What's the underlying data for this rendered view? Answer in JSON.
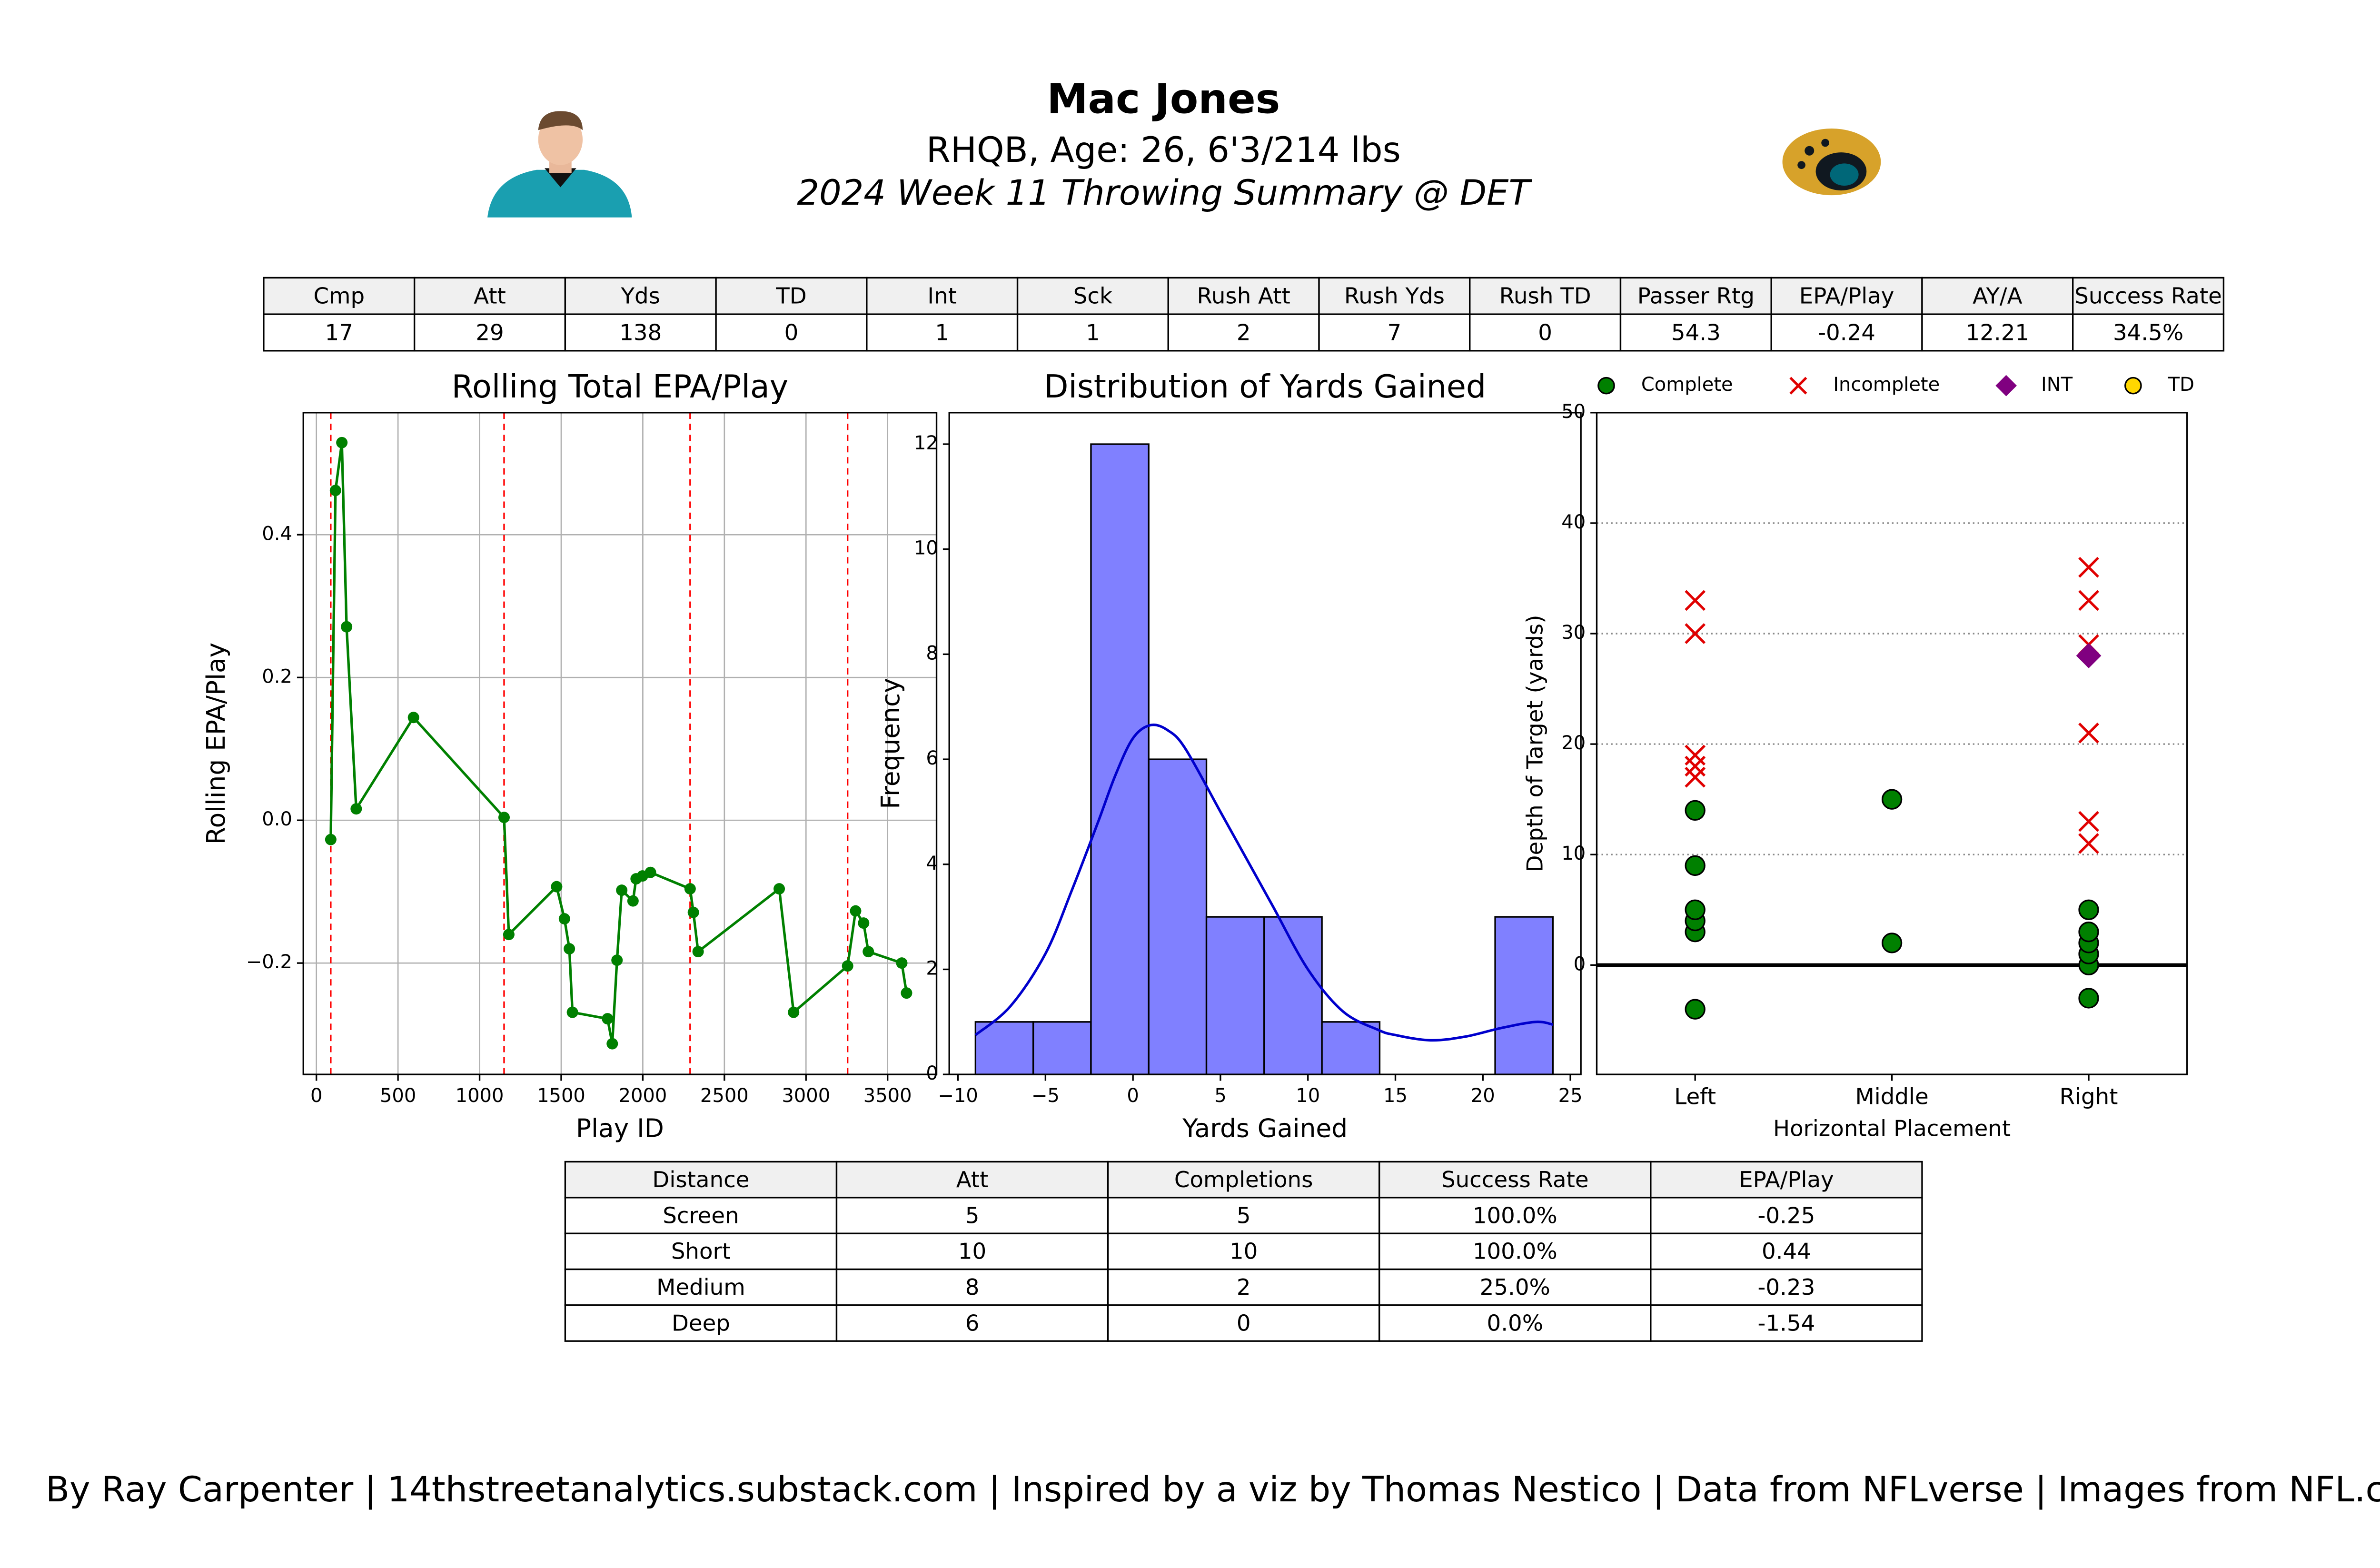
{
  "header": {
    "title": "Mac Jones",
    "subtitle": "RHQB, Age: 26, 6'3/214 lbs",
    "summary": "2024 Week 11 Throwing Summary @ DET"
  },
  "stats_table": {
    "columns": [
      "Cmp",
      "Att",
      "Yds",
      "TD",
      "Int",
      "Sck",
      "Rush Att",
      "Rush Yds",
      "Rush TD",
      "Passer Rtg",
      "EPA/Play",
      "AY/A",
      "Success Rate"
    ],
    "rows": [
      [
        "17",
        "29",
        "138",
        "0",
        "1",
        "1",
        "2",
        "7",
        "0",
        "54.3",
        "-0.24",
        "12.21",
        "34.5%"
      ]
    ]
  },
  "chart_data": [
    {
      "type": "line",
      "title": "Rolling Total EPA/Play",
      "x_label": "Play ID",
      "y_label": "Rolling EPA/Play",
      "x": [
        88,
        117,
        156,
        185,
        244,
        595,
        1150,
        1179,
        1472,
        1520,
        1550,
        1569,
        1784,
        1813,
        1842,
        1871,
        1940,
        1959,
        1998,
        2047,
        2290,
        2310,
        2339,
        2836,
        2924,
        3255,
        3304,
        3353,
        3382,
        3587,
        3616
      ],
      "values": [
        -0.027,
        0.462,
        0.529,
        0.271,
        0.016,
        0.144,
        0.004,
        -0.16,
        -0.093,
        -0.138,
        -0.18,
        -0.269,
        -0.278,
        -0.313,
        -0.196,
        -0.098,
        -0.113,
        -0.082,
        -0.078,
        -0.073,
        -0.096,
        -0.129,
        -0.184,
        -0.096,
        -0.269,
        -0.204,
        -0.127,
        -0.144,
        -0.184,
        -0.2,
        -0.242
      ],
      "color": "#008000",
      "vlines": [
        88,
        1150,
        2290,
        3255
      ],
      "vline_color": "#ff0000",
      "xlim": [
        -80,
        3800
      ],
      "xticks": [
        0,
        500,
        1000,
        1500,
        2000,
        2500,
        3000,
        3500
      ],
      "ylim": [
        -0.356,
        0.571
      ],
      "yticks": [
        {
          "value": -0.2,
          "label": "−0.2"
        },
        {
          "value": 0,
          "label": "0.0"
        },
        0.2,
        0.4
      ],
      "grid": true
    },
    {
      "type": "histogram",
      "title": "Distribution of Yards Gained",
      "x_label": "Yards Gained",
      "y_label": "Frequency",
      "bins": [
        -9,
        -5.7,
        -2.4,
        0.9,
        4.2,
        7.5,
        10.8,
        14.1,
        17.4,
        20.7,
        24
      ],
      "values": [
        1,
        1,
        12,
        6,
        3,
        3,
        1,
        0,
        0,
        3
      ],
      "color": "#8080ff",
      "kde": {
        "x": [
          -9,
          -7,
          -5,
          -3.5,
          -2,
          -1,
          0,
          1,
          2,
          3,
          5,
          6.5,
          8,
          10,
          12,
          14,
          15,
          17,
          19,
          21,
          23,
          24
        ],
        "y": [
          0.75,
          1.3,
          2.3,
          3.5,
          4.8,
          5.7,
          6.4,
          6.65,
          6.55,
          6.2,
          5.0,
          4.1,
          3.2,
          2.0,
          1.2,
          0.85,
          0.75,
          0.65,
          0.72,
          0.88,
          1.0,
          0.95
        ],
        "color": "#0000cc"
      },
      "xlim": [
        -10.5,
        25.6
      ],
      "xticks": [
        {
          "value": -10,
          "label": "−10"
        },
        {
          "value": -5,
          "label": "−5"
        },
        0,
        5,
        10,
        15,
        20,
        25
      ],
      "ylim": [
        0,
        12.6
      ],
      "yticks": [
        0,
        2,
        4,
        6,
        8,
        10,
        12
      ]
    },
    {
      "type": "scatter",
      "x_label": "Horizontal Placement",
      "y_label": "Depth of Target (yards)",
      "categories": [
        "Left",
        "Middle",
        "Right"
      ],
      "series": [
        {
          "name": "Complete",
          "color": "#008000",
          "marker": "circle",
          "x": [
            "Left",
            "Left",
            "Left",
            "Left",
            "Left",
            "Left",
            "Middle",
            "Middle",
            "Right",
            "Right",
            "Right",
            "Right",
            "Right",
            "Right"
          ],
          "y": [
            -4,
            3,
            4,
            5,
            9,
            14,
            2,
            15,
            -3,
            0,
            1,
            2,
            3,
            5
          ]
        },
        {
          "name": "Incomplete",
          "color": "#e00000",
          "marker": "x",
          "x": [
            "Left",
            "Left",
            "Left",
            "Left",
            "Left",
            "Right",
            "Right",
            "Right",
            "Right",
            "Right",
            "Right"
          ],
          "y": [
            33,
            30,
            19,
            18,
            17,
            36,
            33,
            29,
            21,
            13,
            11
          ]
        },
        {
          "name": "INT",
          "color": "#800080",
          "marker": "diamond",
          "x": [
            "Right"
          ],
          "y": [
            28
          ]
        },
        {
          "name": "TD",
          "color": "#ffd700",
          "marker": "circle",
          "x": [],
          "y": []
        }
      ],
      "hline": 0,
      "ylim": [
        -9.9,
        50
      ],
      "yticks": [
        0,
        10,
        20,
        30,
        40,
        50
      ],
      "grid": true,
      "legend": "top"
    }
  ],
  "distance_table": {
    "columns": [
      "Distance",
      "Att",
      "Completions",
      "Success Rate",
      "EPA/Play"
    ],
    "rows": [
      [
        "Screen",
        "5",
        "5",
        "100.0%",
        "-0.25"
      ],
      [
        "Short",
        "10",
        "10",
        "100.0%",
        "0.44"
      ],
      [
        "Medium",
        "8",
        "2",
        "25.0%",
        "-0.23"
      ],
      [
        "Deep",
        "6",
        "0",
        "0.0%",
        "-1.54"
      ]
    ]
  },
  "footer": "By Ray Carpenter | 14thstreetanalytics.substack.com | Inspired by a viz by Thomas Nestico | Data from NFLverse | Images from NFL.com"
}
